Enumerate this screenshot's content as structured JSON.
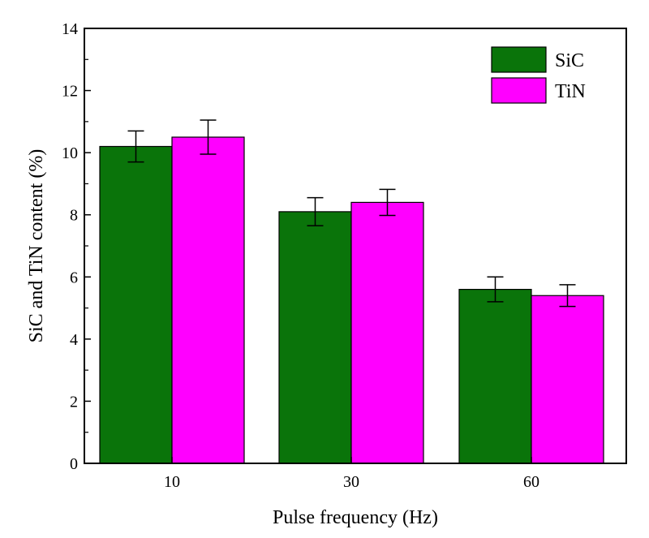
{
  "chart_data": {
    "type": "bar",
    "title": "",
    "xlabel": "Pulse frequency (Hz)",
    "ylabel": "SiC and TiN content (%)",
    "categories": [
      "10",
      "30",
      "60"
    ],
    "ylim": [
      0,
      14
    ],
    "yticks": [
      "0",
      "2",
      "4",
      "6",
      "8",
      "10",
      "12",
      "14"
    ],
    "grid": false,
    "legend_position": "top-right",
    "series": [
      {
        "name": "SiC",
        "color": "#0a740a",
        "values": [
          10.2,
          8.1,
          5.6
        ],
        "errors": [
          0.5,
          0.45,
          0.4
        ]
      },
      {
        "name": "TiN",
        "color": "#ff00ff",
        "values": [
          10.5,
          8.4,
          5.4
        ],
        "errors": [
          0.55,
          0.42,
          0.35
        ]
      }
    ]
  }
}
